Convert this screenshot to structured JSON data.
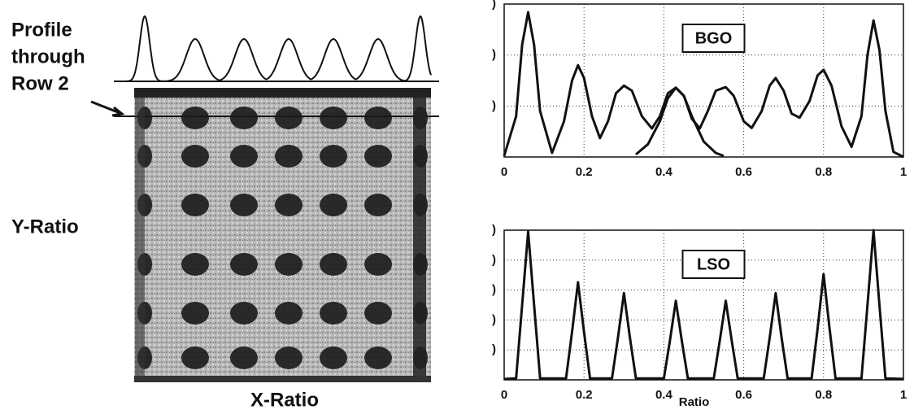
{
  "left_panel": {
    "profile_label": [
      "Profile",
      "through",
      "Row 2"
    ],
    "y_label": "Y-Ratio",
    "x_label": "X-Ratio"
  },
  "chart_data": [
    {
      "type": "line",
      "label": "BGO",
      "xlim": [
        0,
        1
      ],
      "xticks": [
        0,
        0.2,
        0.4,
        0.6,
        0.8,
        1
      ],
      "ylim": [
        0,
        3
      ],
      "yticks": [
        {
          "value": 1,
          "label": ")"
        },
        {
          "value": 2,
          "label": ")"
        },
        {
          "value": 3,
          "label": ")"
        }
      ],
      "grid": true,
      "series": [
        {
          "color": "#111111",
          "x": [
            0,
            0.03,
            0.045,
            0.06,
            0.075,
            0.09,
            0.12,
            0.15,
            0.17,
            0.185,
            0.2,
            0.22,
            0.24,
            0.26,
            0.28,
            0.3,
            0.32,
            0.345,
            0.37,
            0.39,
            0.41,
            0.43,
            0.45,
            0.47,
            0.49,
            0.51,
            0.53,
            0.555,
            0.575,
            0.6,
            0.62,
            0.645,
            0.665,
            0.68,
            0.7,
            0.72,
            0.74,
            0.765,
            0.785,
            0.8,
            0.82,
            0.845,
            0.87,
            0.895,
            0.91,
            0.925,
            0.94,
            0.955,
            0.975,
            1
          ],
          "values": [
            0.02,
            0.8,
            2.2,
            2.84,
            2.2,
            0.9,
            0.08,
            0.7,
            1.5,
            1.8,
            1.55,
            0.8,
            0.37,
            0.7,
            1.25,
            1.4,
            1.3,
            0.8,
            0.56,
            0.8,
            1.25,
            1.36,
            1.2,
            0.75,
            0.56,
            0.9,
            1.3,
            1.37,
            1.2,
            0.7,
            0.57,
            0.9,
            1.4,
            1.55,
            1.3,
            0.85,
            0.77,
            1.1,
            1.6,
            1.71,
            1.4,
            0.6,
            0.2,
            0.8,
            2.0,
            2.68,
            2.1,
            0.9,
            0.1,
            0
          ]
        },
        {
          "color": "#111111",
          "x": [
            0.33,
            0.36,
            0.39,
            0.41,
            0.43,
            0.45,
            0.47,
            0.5,
            0.53,
            0.55
          ],
          "values": [
            0.05,
            0.25,
            0.7,
            1.15,
            1.36,
            1.2,
            0.8,
            0.3,
            0.08,
            0.02
          ]
        }
      ]
    },
    {
      "type": "line",
      "label": "LSO",
      "x_label": "Ratio",
      "xlim": [
        0,
        1
      ],
      "xticks": [
        0,
        0.2,
        0.4,
        0.6,
        0.8,
        1
      ],
      "ylim": [
        0,
        5
      ],
      "yticks": [
        {
          "value": 1,
          "label": ")"
        },
        {
          "value": 2,
          "label": ")"
        },
        {
          "value": 3,
          "label": ")"
        },
        {
          "value": 4,
          "label": ")"
        },
        {
          "value": 5,
          "label": ")"
        }
      ],
      "grid": true,
      "series": [
        {
          "color": "#111111",
          "x": [
            0,
            0.03,
            0.045,
            0.06,
            0.075,
            0.09,
            0.155,
            0.17,
            0.185,
            0.2,
            0.215,
            0.27,
            0.285,
            0.3,
            0.315,
            0.33,
            0.4,
            0.415,
            0.43,
            0.445,
            0.46,
            0.525,
            0.54,
            0.555,
            0.57,
            0.585,
            0.65,
            0.665,
            0.68,
            0.695,
            0.71,
            0.77,
            0.785,
            0.8,
            0.815,
            0.83,
            0.895,
            0.91,
            0.925,
            0.94,
            0.955,
            1
          ],
          "values": [
            0.03,
            0.05,
            2.5,
            4.95,
            2.5,
            0.05,
            0.05,
            1.6,
            3.26,
            1.6,
            0.05,
            0.05,
            1.4,
            2.9,
            1.4,
            0.05,
            0.05,
            1.3,
            2.64,
            1.3,
            0.05,
            0.05,
            1.3,
            2.64,
            1.3,
            0.05,
            0.05,
            1.4,
            2.9,
            1.4,
            0.05,
            0.05,
            1.7,
            3.53,
            1.7,
            0.05,
            0.05,
            2.5,
            5.0,
            2.5,
            0.05,
            0.03
          ]
        }
      ]
    }
  ]
}
